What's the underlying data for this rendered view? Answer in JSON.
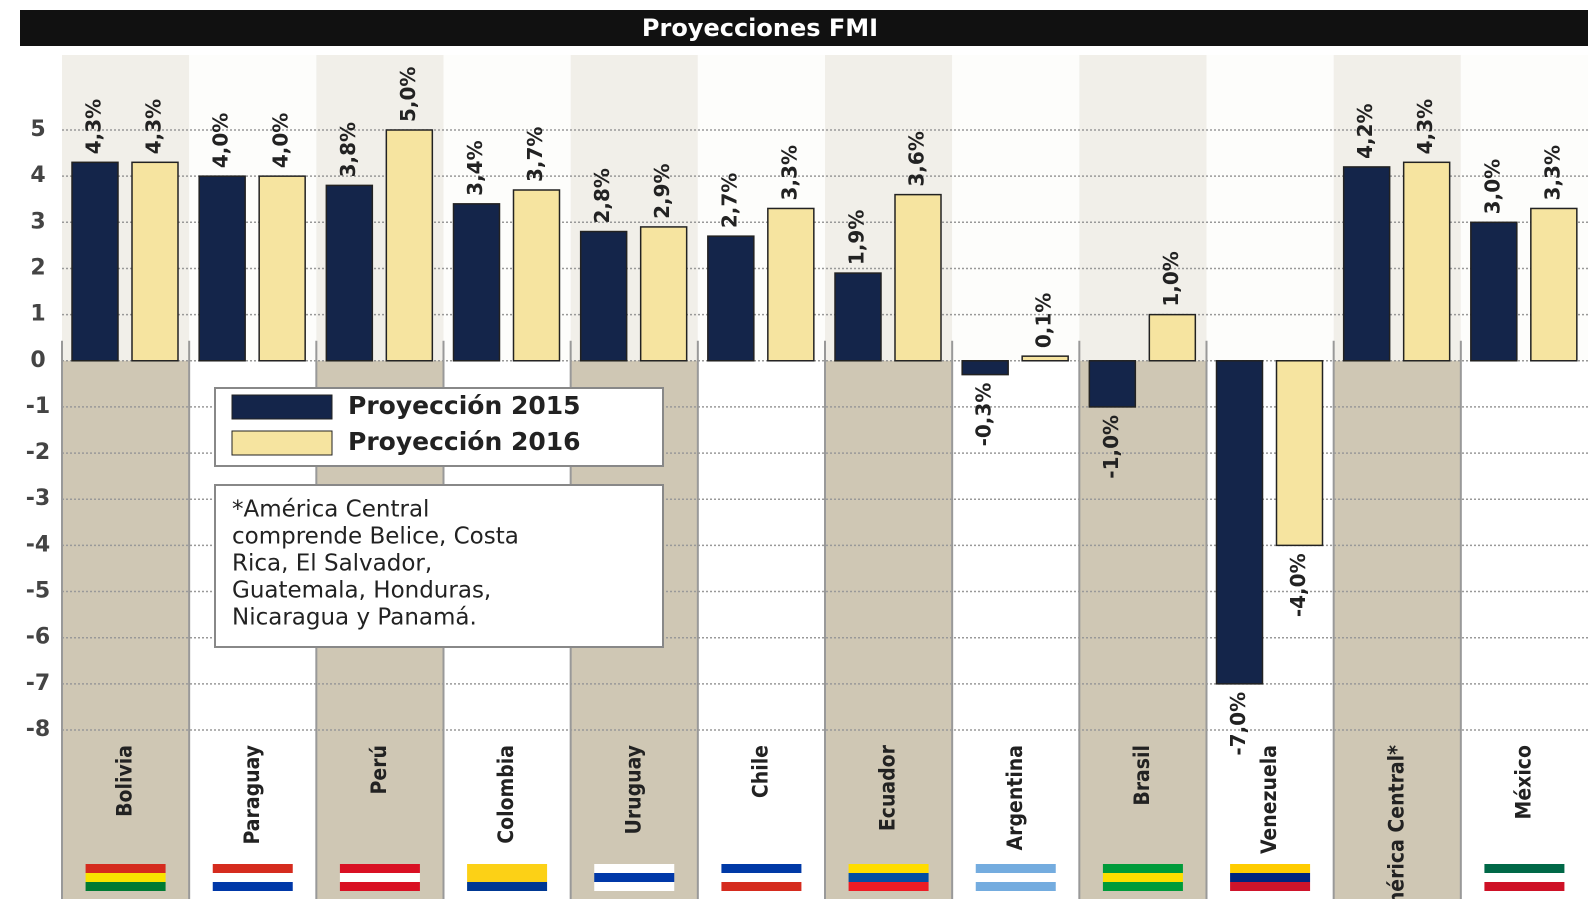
{
  "chart_data": {
    "type": "bar",
    "title": "Proyecciones FMI",
    "categories": [
      "Bolivia",
      "Paraguay",
      "Perú",
      "Colombia",
      "Uruguay",
      "Chile",
      "Ecuador",
      "Argentina",
      "Brasil",
      "Venezuela",
      "América Central*",
      "México"
    ],
    "series": [
      {
        "name": "Proyección 2015",
        "color": "#14254a",
        "values": [
          4.3,
          4.0,
          3.8,
          3.4,
          2.8,
          2.7,
          1.9,
          -0.3,
          -1.0,
          -7.0,
          4.2,
          3.0
        ],
        "value_labels": [
          "4,3%",
          "4,0%",
          "3,8%",
          "3,4%",
          "2,8%",
          "2,7%",
          "1,9%",
          "-0,3%",
          "-1,0%",
          "-7,0%",
          "4,2%",
          "3,0%"
        ]
      },
      {
        "name": "Proyección 2016",
        "color": "#f6e4a0",
        "values": [
          4.3,
          4.0,
          5.0,
          3.7,
          2.9,
          3.3,
          3.6,
          0.1,
          1.0,
          -4.0,
          4.3,
          3.3
        ],
        "value_labels": [
          "4,3%",
          "4,0%",
          "5,0%",
          "3,7%",
          "2,9%",
          "3,3%",
          "3,6%",
          "0,1%",
          "1,0%",
          "-4,0%",
          "4,3%",
          "3,3%"
        ]
      }
    ],
    "ylim": [
      -8,
      5
    ],
    "yticks": [
      -8,
      -7,
      -6,
      -5,
      -4,
      -3,
      -2,
      -1,
      0,
      1,
      2,
      3,
      4,
      5
    ],
    "grid": true,
    "legend": "upper-left",
    "note": [
      "*América Central",
      "comprende Belice, Costa",
      "Rica, El Salvador,",
      "Guatemala, Honduras,",
      "Nicaragua y Panamá."
    ]
  }
}
